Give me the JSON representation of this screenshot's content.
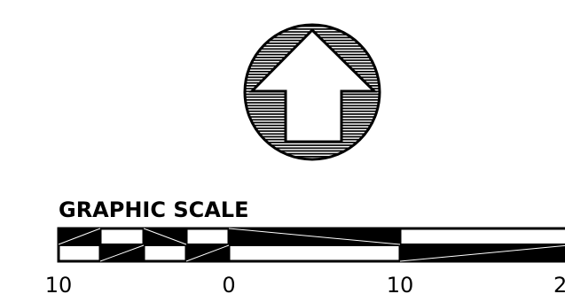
{
  "north_arrow": {
    "icon": "north-arrow-icon",
    "direction": "up"
  },
  "scale_bar": {
    "title": "GRAPHIC SCALE",
    "tick_labels": [
      "10",
      "0",
      "10",
      "2"
    ],
    "colors": {
      "ink": "#000000",
      "paper": "#ffffff"
    }
  }
}
